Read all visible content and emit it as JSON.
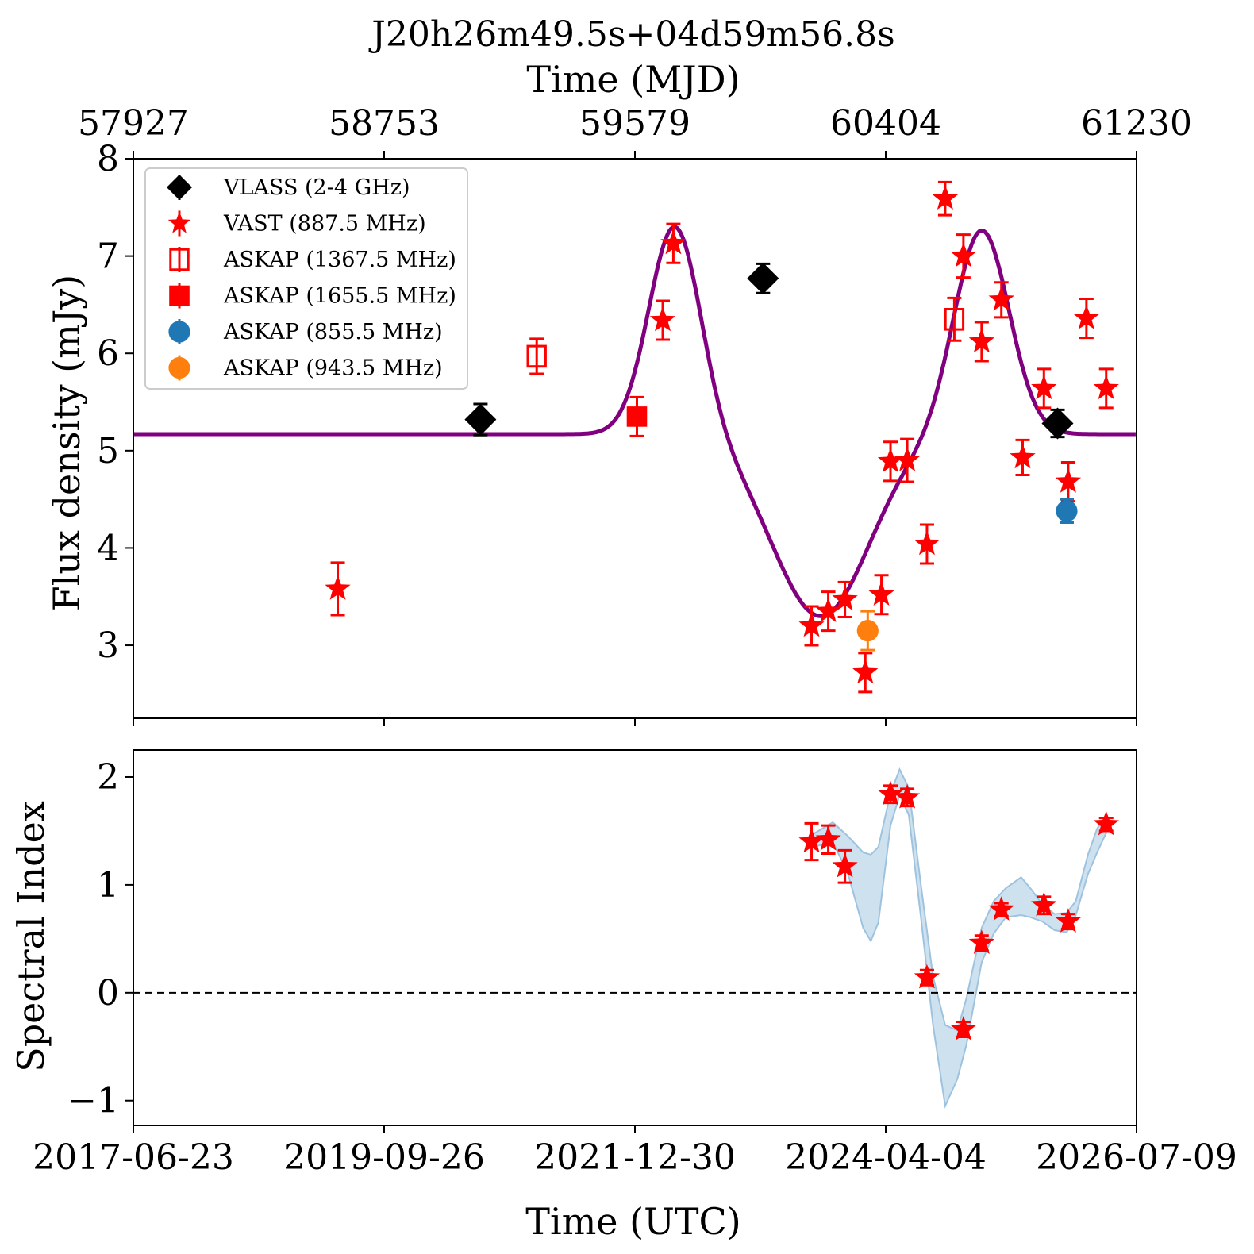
{
  "chart_data": [
    {
      "type": "scatter",
      "title": "J20h26m49.5s+04d59m56.8s",
      "top_xlabel": "Time (MJD)",
      "top_ticks": [
        "57927",
        "58753",
        "59579",
        "60404",
        "61230"
      ],
      "ylabel": "Flux density (mJy)",
      "ylim": [
        2.25,
        8.0
      ],
      "yticks": [
        "3",
        "4",
        "5",
        "6",
        "7",
        "8"
      ],
      "xlim": [
        57927,
        61230
      ],
      "legend_position": "top-left",
      "model_curve": {
        "color": "#800080",
        "baseline": 5.17,
        "components": [
          {
            "center_mjd": 59710,
            "amplitude": 2.15,
            "sigma_days": 85
          },
          {
            "center_mjd": 60190,
            "amplitude": -1.87,
            "sigma_days": 160
          },
          {
            "center_mjd": 60720,
            "amplitude": 2.1,
            "sigma_days": 90
          }
        ]
      },
      "series": [
        {
          "name": "VLASS (2-4 GHz)",
          "marker": "diamond",
          "color": "#000000",
          "points": [
            {
              "x": 59070,
              "y": 5.32,
              "err": 0.16
            },
            {
              "x": 60000,
              "y": 6.77,
              "err": 0.15
            },
            {
              "x": 60970,
              "y": 5.28,
              "err": 0.14
            }
          ]
        },
        {
          "name": "VAST (887.5 MHz)",
          "marker": "star",
          "color": "#ff0000",
          "points": [
            {
              "x": 58600,
              "y": 3.58,
              "err": 0.27
            },
            {
              "x": 59670,
              "y": 6.34,
              "err": 0.2
            },
            {
              "x": 59705,
              "y": 7.13,
              "err": 0.2
            },
            {
              "x": 60160,
              "y": 3.2,
              "err": 0.2
            },
            {
              "x": 60215,
              "y": 3.35,
              "err": 0.2
            },
            {
              "x": 60270,
              "y": 3.47,
              "err": 0.18
            },
            {
              "x": 60337,
              "y": 2.72,
              "err": 0.2
            },
            {
              "x": 60390,
              "y": 3.52,
              "err": 0.2
            },
            {
              "x": 60420,
              "y": 4.89,
              "err": 0.2
            },
            {
              "x": 60475,
              "y": 4.9,
              "err": 0.22
            },
            {
              "x": 60540,
              "y": 4.04,
              "err": 0.2
            },
            {
              "x": 60600,
              "y": 7.59,
              "err": 0.17
            },
            {
              "x": 60660,
              "y": 7.0,
              "err": 0.22
            },
            {
              "x": 60720,
              "y": 6.12,
              "err": 0.2
            },
            {
              "x": 60785,
              "y": 6.55,
              "err": 0.18
            },
            {
              "x": 60855,
              "y": 4.93,
              "err": 0.18
            },
            {
              "x": 60925,
              "y": 5.64,
              "err": 0.2
            },
            {
              "x": 61005,
              "y": 4.68,
              "err": 0.2
            },
            {
              "x": 61065,
              "y": 6.36,
              "err": 0.2
            },
            {
              "x": 61130,
              "y": 5.64,
              "err": 0.2
            }
          ]
        },
        {
          "name": "ASKAP (1367.5 MHz)",
          "marker": "open-square",
          "color": "#ff0000",
          "points": [
            {
              "x": 59255,
              "y": 5.97,
              "err": 0.18
            },
            {
              "x": 60630,
              "y": 6.35,
              "err": 0.22
            }
          ]
        },
        {
          "name": "ASKAP (1655.5 MHz)",
          "marker": "square",
          "color": "#ff0000",
          "points": [
            {
              "x": 59585,
              "y": 5.35,
              "err": 0.2
            }
          ]
        },
        {
          "name": "ASKAP (855.5 MHz)",
          "marker": "circle",
          "color": "#1f77b4",
          "points": [
            {
              "x": 61000,
              "y": 4.38,
              "err": 0.12
            }
          ]
        },
        {
          "name": "ASKAP (943.5 MHz)",
          "marker": "circle",
          "color": "#ff7f0e",
          "points": [
            {
              "x": 60345,
              "y": 3.15,
              "err": 0.2
            }
          ]
        }
      ]
    },
    {
      "type": "scatter",
      "xlabel": "Time (UTC)",
      "xticks": [
        "2017-06-23",
        "2019-09-26",
        "2021-12-30",
        "2024-04-04",
        "2026-07-09"
      ],
      "ylabel": "Spectral Index",
      "ylim": [
        -1.23,
        2.25
      ],
      "yticks": [
        "−1",
        "0",
        "1",
        "2"
      ],
      "xlim": [
        57927,
        61230
      ],
      "zero_line": {
        "y": 0,
        "style": "dashed",
        "color": "#000000"
      },
      "band": {
        "color": "#9ec3df",
        "x": [
          60165,
          60230,
          60280,
          60330,
          60355,
          60380,
          60420,
          60450,
          60480,
          60520,
          60560,
          60600,
          60640,
          60670,
          60720,
          60760,
          60800,
          60850,
          60880,
          60920,
          60960,
          61000,
          61030,
          61070,
          61100,
          61130
        ],
        "upper": [
          1.47,
          1.58,
          1.45,
          1.3,
          1.28,
          1.35,
          1.85,
          2.07,
          1.9,
          1.0,
          0.15,
          -0.3,
          -0.35,
          -0.05,
          0.6,
          0.85,
          0.97,
          1.07,
          0.97,
          0.82,
          0.73,
          0.74,
          0.85,
          1.28,
          1.52,
          1.65
        ],
        "lower": [
          1.35,
          1.4,
          1.1,
          0.6,
          0.48,
          0.65,
          1.55,
          1.83,
          1.65,
          0.7,
          -0.3,
          -1.05,
          -0.8,
          -0.48,
          0.28,
          0.55,
          0.7,
          0.72,
          0.7,
          0.66,
          0.58,
          0.56,
          0.72,
          1.1,
          1.3,
          1.48
        ]
      },
      "series": [
        {
          "name": "",
          "marker": "star",
          "color": "#ff0000",
          "points": [
            {
              "x": 60160,
              "y": 1.4,
              "err": 0.17
            },
            {
              "x": 60215,
              "y": 1.42,
              "err": 0.13
            },
            {
              "x": 60270,
              "y": 1.17,
              "err": 0.15
            },
            {
              "x": 60420,
              "y": 1.84,
              "err": 0.08
            },
            {
              "x": 60475,
              "y": 1.81,
              "err": 0.08
            },
            {
              "x": 60540,
              "y": 0.14,
              "err": 0.07
            },
            {
              "x": 60660,
              "y": -0.34,
              "err": 0.07
            },
            {
              "x": 60720,
              "y": 0.46,
              "err": 0.07
            },
            {
              "x": 60785,
              "y": 0.77,
              "err": 0.06
            },
            {
              "x": 60925,
              "y": 0.81,
              "err": 0.08
            },
            {
              "x": 61005,
              "y": 0.66,
              "err": 0.07
            },
            {
              "x": 61130,
              "y": 1.56,
              "err": 0.06
            }
          ]
        }
      ]
    }
  ]
}
